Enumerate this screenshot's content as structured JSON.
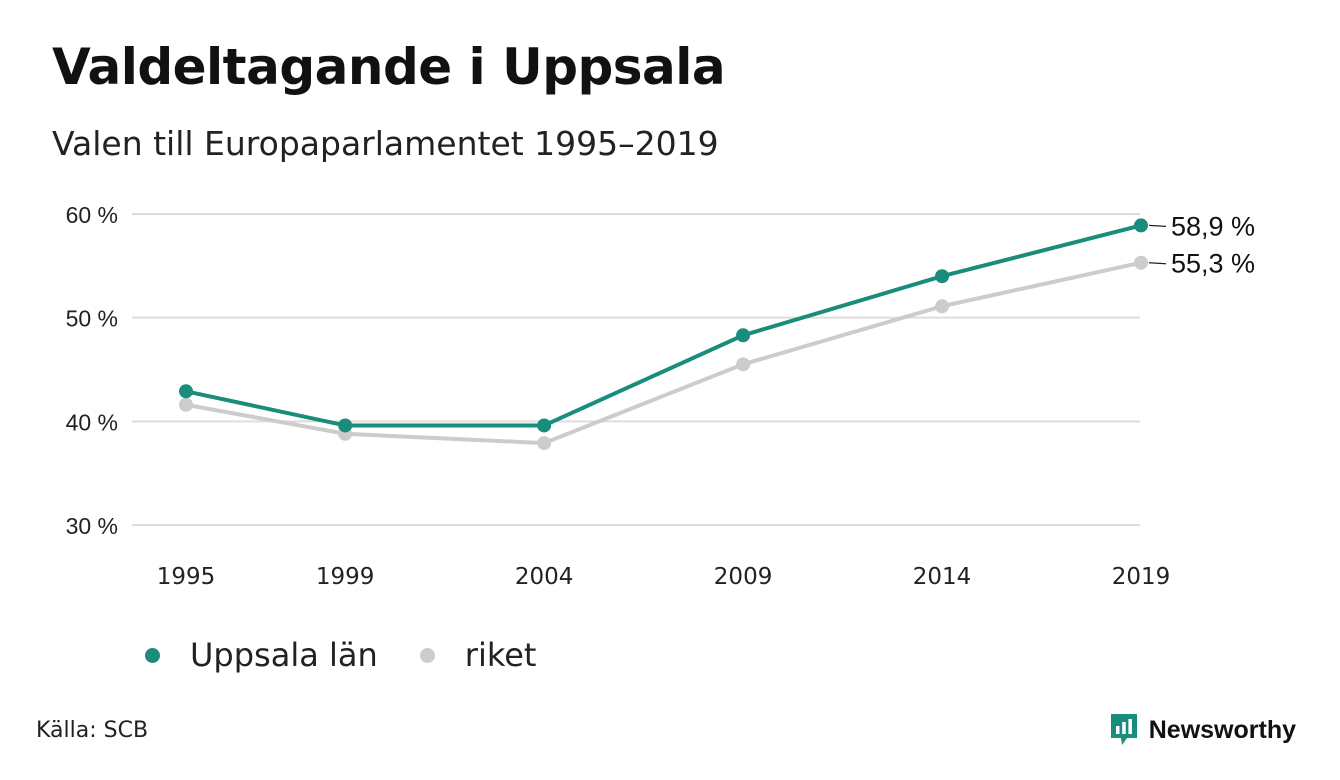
{
  "title": "Valdeltagande i Uppsala",
  "subtitle": "Valen till Europaparlamentet 1995–2019",
  "source": "Källa: SCB",
  "brand": {
    "name": "Newsworthy",
    "color": "#1a8c7c"
  },
  "chart_data": {
    "type": "line",
    "categories": [
      "1995",
      "1999",
      "2004",
      "2009",
      "2014",
      "2019"
    ],
    "x": [
      1995,
      1999,
      2004,
      2009,
      2014,
      2019
    ],
    "series": [
      {
        "name": "riket",
        "color": "#cccccc",
        "values": [
          41.6,
          38.8,
          37.9,
          45.5,
          51.1,
          55.3
        ]
      },
      {
        "name": "Uppsala län",
        "color": "#1a8c7c",
        "values": [
          42.9,
          39.6,
          39.6,
          48.3,
          54.0,
          58.9
        ]
      }
    ],
    "end_labels": [
      "58,9 %",
      "55,3 %"
    ],
    "y_ticks": [
      30,
      40,
      50,
      60
    ],
    "y_tick_labels": [
      "30 %",
      "40 %",
      "50 %",
      "60 %"
    ],
    "ylim": [
      30,
      60
    ],
    "grid": true,
    "legend": "bottom-left",
    "legend_order": [
      "Uppsala län",
      "riket"
    ]
  }
}
